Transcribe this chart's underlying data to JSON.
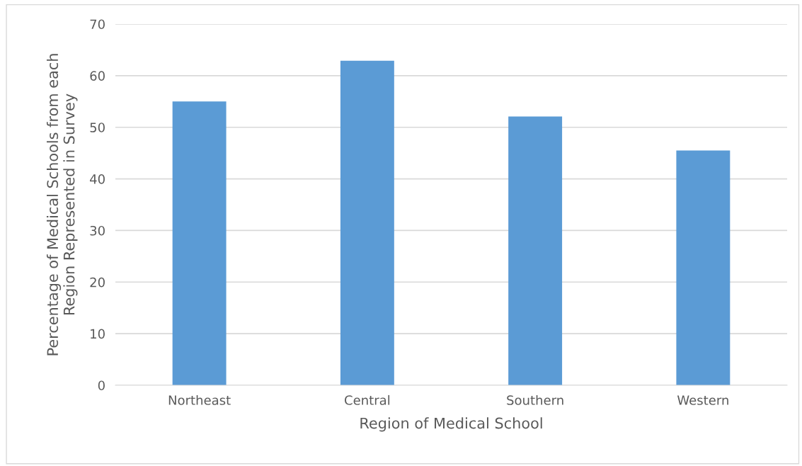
{
  "chart_data": {
    "type": "bar",
    "xlabel": "Region of Medical School",
    "ylabel": "Percentage of Medical Schools from each\nRegion Represented in Survey",
    "categories": [
      "Northeast",
      "Central",
      "Southern",
      "Western"
    ],
    "values": [
      55.0,
      62.9,
      52.1,
      45.5
    ],
    "color": "#5b9bd5",
    "ylim": [
      0,
      70
    ],
    "yticks": [
      0,
      10,
      20,
      30,
      40,
      50,
      60,
      70
    ],
    "grid": "y"
  }
}
